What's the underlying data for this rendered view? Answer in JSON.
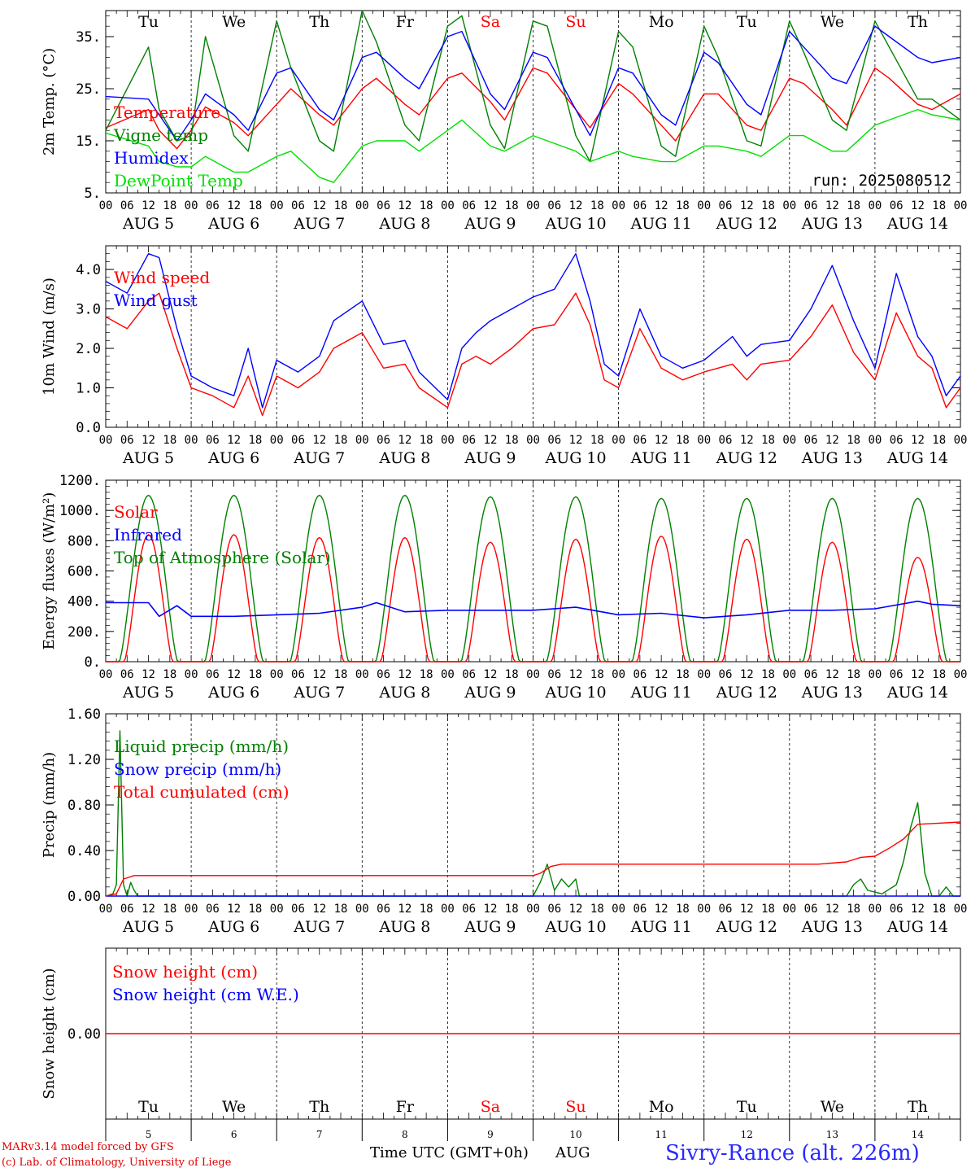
{
  "chart_data": [
    {
      "type": "line",
      "ylabel": "2m Temp. (°C)",
      "ylim": [
        5,
        40
      ],
      "yticks": [
        "5.",
        "15.",
        "25.",
        "35."
      ],
      "ytick_values": [
        5,
        15,
        25,
        35
      ],
      "run_label": "run: 2025080512",
      "legend_placement": "left",
      "x_hours": [
        0,
        12,
        15,
        20,
        24,
        28,
        36,
        40,
        48,
        52,
        60,
        64,
        72,
        76,
        84,
        88,
        96,
        100,
        108,
        112,
        120,
        124,
        132,
        136,
        144,
        148,
        156,
        160,
        168,
        172,
        180,
        184,
        192,
        196,
        204,
        208,
        216,
        220,
        228,
        232,
        240
      ],
      "series": [
        {
          "name": "Temperature",
          "color": "#ff0000",
          "values": [
            17.5,
            21,
            17,
            13.5,
            17,
            21.5,
            18.5,
            16,
            22,
            25,
            20,
            18,
            25,
            27,
            22,
            20,
            27,
            28,
            22.5,
            19,
            29,
            28,
            21,
            17.5,
            26,
            24,
            18,
            15,
            24,
            24,
            18,
            17,
            27,
            26,
            21,
            18,
            29,
            27,
            22,
            21,
            24
          ]
        },
        {
          "name": "Vigne temp",
          "color": "#008000",
          "values": [
            17,
            33,
            21,
            15,
            16,
            35,
            16,
            13,
            38,
            29,
            15,
            13,
            40,
            34,
            18,
            15,
            37,
            39,
            18,
            13.5,
            38,
            37,
            16,
            11,
            36,
            33,
            14,
            12,
            37,
            31,
            15,
            14,
            38,
            32,
            19,
            17,
            38,
            33,
            23,
            23,
            19
          ]
        },
        {
          "name": "Humidex",
          "color": "#0000ff",
          "values": [
            23.5,
            23,
            20,
            15,
            19,
            24,
            20,
            17,
            28,
            29,
            21,
            19,
            31,
            32,
            27,
            25,
            35,
            36,
            24,
            21,
            32,
            31,
            21,
            16,
            29,
            28,
            20,
            18,
            32,
            30,
            22,
            20,
            36,
            33,
            27,
            26,
            37,
            35,
            31,
            30,
            31
          ]
        },
        {
          "name": "DewPoint Temp",
          "color": "#00e000",
          "values": [
            16.5,
            14,
            11,
            10,
            10,
            12,
            9,
            9,
            12,
            13,
            8,
            7,
            14,
            15,
            15,
            13,
            17,
            19,
            14,
            13,
            16,
            15,
            13,
            11,
            13,
            12,
            11,
            11,
            14,
            14,
            13,
            12,
            16,
            16,
            13,
            13,
            18,
            19,
            21,
            20,
            19
          ]
        }
      ]
    },
    {
      "type": "line",
      "ylabel": "10m Wind (m/s)",
      "ylim": [
        0,
        4.6
      ],
      "yticks": [
        "0.0",
        "1.0",
        "2.0",
        "3.0",
        "4.0"
      ],
      "ytick_values": [
        0,
        1,
        2,
        3,
        4
      ],
      "legend_placement": "left",
      "x_hours": [
        0,
        6,
        12,
        15,
        20,
        24,
        30,
        36,
        40,
        44,
        48,
        54,
        60,
        64,
        72,
        78,
        84,
        88,
        96,
        100,
        104,
        108,
        114,
        120,
        126,
        132,
        136,
        140,
        144,
        150,
        156,
        162,
        168,
        176,
        180,
        184,
        192,
        198,
        204,
        210,
        216,
        222,
        228,
        232,
        236,
        240
      ],
      "series": [
        {
          "name": "Wind speed",
          "color": "#ff0000",
          "values": [
            2.8,
            2.5,
            3.2,
            3.4,
            2.0,
            1.0,
            0.8,
            0.5,
            1.3,
            0.3,
            1.3,
            1.0,
            1.4,
            2.0,
            2.4,
            1.5,
            1.6,
            1.0,
            0.5,
            1.6,
            1.8,
            1.6,
            2.0,
            2.5,
            2.6,
            3.4,
            2.6,
            1.2,
            1.0,
            2.5,
            1.5,
            1.2,
            1.4,
            1.6,
            1.2,
            1.6,
            1.7,
            2.3,
            3.1,
            1.9,
            1.2,
            2.9,
            1.8,
            1.5,
            0.5,
            1.0
          ]
        },
        {
          "name": "Wind gust",
          "color": "#0000ff",
          "values": [
            3.7,
            3.4,
            4.4,
            4.3,
            2.5,
            1.3,
            1.0,
            0.8,
            2.0,
            0.5,
            1.7,
            1.4,
            1.8,
            2.7,
            3.2,
            2.1,
            2.2,
            1.4,
            0.7,
            2.0,
            2.4,
            2.7,
            3.0,
            3.3,
            3.5,
            4.4,
            3.2,
            1.6,
            1.3,
            3.0,
            1.8,
            1.5,
            1.7,
            2.3,
            1.8,
            2.1,
            2.2,
            3.0,
            4.1,
            2.7,
            1.5,
            3.9,
            2.3,
            1.8,
            0.8,
            1.3
          ]
        }
      ]
    },
    {
      "type": "line",
      "ylabel": "Energy fluxes (W/m²)",
      "ylim": [
        0,
        1200
      ],
      "yticks": [
        "0.",
        "200.",
        "400.",
        "600.",
        "800.",
        "1000.",
        "1200."
      ],
      "ytick_values": [
        0,
        200,
        400,
        600,
        800,
        1000,
        1200
      ],
      "legend_placement": "left",
      "peak_hour": 12,
      "toa_peaks": [
        1100,
        1100,
        1100,
        1100,
        1090,
        1090,
        1080,
        1080,
        1080,
        1080
      ],
      "solar_peaks": [
        840,
        840,
        820,
        820,
        790,
        810,
        830,
        810,
        790,
        690
      ],
      "infrared": {
        "x_hours": [
          0,
          12,
          15,
          20,
          24,
          36,
          48,
          60,
          72,
          76,
          84,
          96,
          108,
          120,
          132,
          144,
          156,
          168,
          180,
          192,
          204,
          216,
          228,
          232,
          240
        ],
        "values": [
          390,
          390,
          300,
          370,
          300,
          300,
          310,
          320,
          360,
          390,
          330,
          340,
          340,
          340,
          360,
          310,
          320,
          290,
          310,
          340,
          340,
          350,
          400,
          380,
          370
        ]
      }
    },
    {
      "type": "line",
      "ylabel": "Precip (mm/h)",
      "ylim": [
        0,
        1.6
      ],
      "yticks": [
        "0.00",
        "0.40",
        "0.80",
        "1.20",
        "1.60"
      ],
      "ytick_values": [
        0,
        0.4,
        0.8,
        1.2,
        1.6
      ],
      "legend_placement": "left",
      "series": [
        {
          "name": "Liquid precip (mm/h)",
          "color": "#008000",
          "x_hours": [
            0,
            2,
            3,
            4,
            5,
            6,
            7,
            8,
            9,
            10,
            120,
            122,
            124,
            126,
            128,
            130,
            132,
            133,
            134,
            208,
            210,
            212,
            214,
            218,
            222,
            224,
            226,
            228,
            230,
            232,
            234,
            236,
            238,
            240
          ],
          "values": [
            0,
            0.02,
            0.1,
            1.45,
            0.1,
            0,
            0.12,
            0.05,
            0,
            0,
            0,
            0.12,
            0.28,
            0.05,
            0.15,
            0.08,
            0.15,
            0,
            0,
            0,
            0.1,
            0.15,
            0.05,
            0.02,
            0.1,
            0.3,
            0.6,
            0.82,
            0.2,
            0,
            0,
            0.08,
            0,
            0
          ]
        },
        {
          "name": "Snow precip (mm/h)",
          "color": "#0000ff",
          "x_hours": [
            0,
            240
          ],
          "values": [
            0,
            0
          ]
        },
        {
          "name": "Total cumulated (cm)",
          "color": "#ff0000",
          "x_hours": [
            0,
            3,
            5,
            8,
            120,
            122,
            125,
            128,
            200,
            208,
            212,
            216,
            220,
            224,
            228,
            240
          ],
          "values": [
            0,
            0.02,
            0.15,
            0.18,
            0.18,
            0.2,
            0.26,
            0.28,
            0.28,
            0.3,
            0.34,
            0.35,
            0.42,
            0.5,
            0.63,
            0.65
          ]
        }
      ]
    },
    {
      "type": "line",
      "ylabel": "Snow height (cm)",
      "yticks": [
        "0.00"
      ],
      "ytick_values": [
        0
      ],
      "legend_placement": "left",
      "series": [
        {
          "name": "Snow height (cm)",
          "color": "#ff0000",
          "values": [
            0,
            0
          ]
        },
        {
          "name": "Snow height (cm W.E.)",
          "color": "#0000ff",
          "values": [
            0,
            0
          ]
        }
      ]
    }
  ],
  "axis": {
    "hour_labels": [
      "00",
      "06",
      "12",
      "18"
    ],
    "end_hour_label": "00",
    "day_labels": [
      "AUG  5",
      "AUG  6",
      "AUG  7",
      "AUG  8",
      "AUG  9",
      "AUG 10",
      "AUG 11",
      "AUG 12",
      "AUG 13",
      "AUG 14"
    ],
    "weekdays": [
      "Tu",
      "We",
      "Th",
      "Fr",
      "Sa",
      "Su",
      "Mo",
      "Tu",
      "We",
      "Th"
    ],
    "weekday_colors": [
      "#000000",
      "#000000",
      "#000000",
      "#000000",
      "#ff0000",
      "#ff0000",
      "#000000",
      "#000000",
      "#000000",
      "#000000"
    ],
    "day_numbers": [
      "5",
      "6",
      "7",
      "8",
      "9",
      "10",
      "11",
      "12",
      "13",
      "14"
    ],
    "xlabel": "Time UTC (GMT+0h)",
    "month": "AUG"
  },
  "footer": {
    "model_line": "MARv3.14 model forced by GFS",
    "lab_line": "(c) Lab. of Climatology, University of Liege",
    "station": "Sivry-Rance (alt. 226m)"
  }
}
